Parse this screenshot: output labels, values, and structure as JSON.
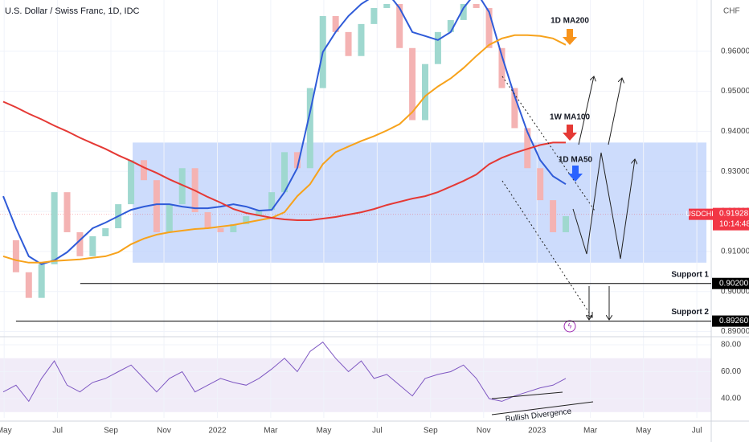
{
  "chart_data": [
    {
      "type": "candlestick",
      "title": "U.S. Dollar / Swiss Franc, 1D, IDC",
      "currency": "CHF",
      "symbol": "USDCHF",
      "x": [
        2021.33,
        2021.37,
        2021.41,
        2021.45,
        2021.49,
        2021.53,
        2021.57,
        2021.61,
        2021.65,
        2021.69,
        2021.73,
        2021.77,
        2021.81,
        2021.85,
        2021.89,
        2021.93,
        2021.97,
        2022.01,
        2022.05,
        2022.09,
        2022.13,
        2022.17,
        2022.21,
        2022.25,
        2022.29,
        2022.33,
        2022.37,
        2022.41,
        2022.45,
        2022.49,
        2022.53,
        2022.57,
        2022.61,
        2022.65,
        2022.69,
        2022.73,
        2022.77,
        2022.81,
        2022.85,
        2022.89,
        2022.93,
        2022.97,
        2023.01,
        2023.05,
        2023.09
      ],
      "values": [
        0.9128,
        0.9048,
        0.8984,
        0.9068,
        0.9248,
        0.9148,
        0.9088,
        0.9138,
        0.9158,
        0.9218,
        0.9328,
        0.9278,
        0.9148,
        0.9218,
        0.9308,
        0.9198,
        0.9158,
        0.9148,
        0.9168,
        0.9188,
        0.9204,
        0.9248,
        0.9348,
        0.9308,
        0.9508,
        0.9688,
        0.9648,
        0.9588,
        0.9668,
        0.9708,
        0.9718,
        0.9608,
        0.9428,
        0.9568,
        0.9648,
        0.9678,
        0.9718,
        0.9708,
        0.9608,
        0.9508,
        0.9408,
        0.9308,
        0.9228,
        0.9148,
        0.9188
      ],
      "up_color": "#9fd8cf",
      "down_color": "#f4b3b3",
      "series": [
        {
          "name": "1D MA50",
          "color": "#2f5bd8",
          "values": [
            0.9238,
            0.9158,
            0.9088,
            0.9068,
            0.9078,
            0.9098,
            0.9128,
            0.9158,
            0.9172,
            0.9188,
            0.9204,
            0.9212,
            0.9218,
            0.9218,
            0.9212,
            0.9208,
            0.9208,
            0.9212,
            0.9218,
            0.9212,
            0.9202,
            0.9204,
            0.9248,
            0.9308,
            0.9448,
            0.9598,
            0.9648,
            0.9688,
            0.9718,
            0.9738,
            0.9748,
            0.9708,
            0.9648,
            0.9638,
            0.9628,
            0.9648,
            0.9708,
            0.9748,
            0.9698,
            0.9588,
            0.9488,
            0.9398,
            0.9328,
            0.9288,
            0.9268
          ]
        },
        {
          "name": "1D MA200",
          "color": "#f7a21b",
          "values": [
            0.9088,
            0.9078,
            0.9072,
            0.9072,
            0.9076,
            0.9078,
            0.908,
            0.9084,
            0.9088,
            0.9098,
            0.9118,
            0.9132,
            0.9142,
            0.9148,
            0.9152,
            0.9156,
            0.9158,
            0.9162,
            0.9166,
            0.9172,
            0.9178,
            0.9184,
            0.9198,
            0.9238,
            0.9268,
            0.9318,
            0.9348,
            0.9362,
            0.9376,
            0.9388,
            0.9402,
            0.9418,
            0.9448,
            0.9488,
            0.9512,
            0.9532,
            0.9558,
            0.9588,
            0.9616,
            0.9632,
            0.964,
            0.964,
            0.9638,
            0.9632,
            0.9616
          ]
        },
        {
          "name": "1W MA100",
          "color": "#e53935",
          "values": [
            0.9474,
            0.946,
            0.9444,
            0.943,
            0.9414,
            0.94,
            0.9384,
            0.937,
            0.9356,
            0.934,
            0.9326,
            0.931,
            0.9296,
            0.928,
            0.9266,
            0.9252,
            0.9236,
            0.9222,
            0.9206,
            0.9196,
            0.919,
            0.9184,
            0.918,
            0.9178,
            0.9178,
            0.9182,
            0.9186,
            0.9192,
            0.9198,
            0.9206,
            0.9216,
            0.9224,
            0.9232,
            0.9238,
            0.9248,
            0.9262,
            0.9276,
            0.9292,
            0.9318,
            0.9334,
            0.9346,
            0.9356,
            0.9366,
            0.9372,
            0.9372
          ]
        }
      ],
      "xlim": [
        2021.32,
        2023.545
      ],
      "ylim": [
        0.8889,
        0.9728
      ],
      "yticks": [
        {
          "value": 0.89,
          "label": "0.89000"
        },
        {
          "value": 0.9,
          "label": "0.90000"
        },
        {
          "value": 0.91,
          "label": "0.91000"
        },
        {
          "value": 0.92,
          "label": "0.92000"
        },
        {
          "value": 0.93,
          "label": "0.93000"
        },
        {
          "value": 0.94,
          "label": "0.94000"
        },
        {
          "value": 0.95,
          "label": "0.95000"
        },
        {
          "value": 0.96,
          "label": "0.96000"
        }
      ],
      "grid": true,
      "zone": {
        "from": 2021.735,
        "to": 2023.53,
        "low": 0.9072,
        "high": 0.9372,
        "color": "#bcd0fb"
      },
      "hlines": [
        {
          "name": "Support 1",
          "value": 0.902,
          "value_label": "0.90200",
          "from": 2021.571
        },
        {
          "name": "Support 2",
          "value": 0.8926,
          "value_label": "0.89260",
          "from": 2021.37
        }
      ],
      "last_price": 0.91928,
      "last_price_label": "0.91928",
      "countdown": "10:14:48"
    },
    {
      "type": "line",
      "annotation": "Bullish Divergence",
      "color": "#7e57c2",
      "x": [
        2021.33,
        2021.37,
        2021.41,
        2021.45,
        2021.49,
        2021.53,
        2021.57,
        2021.61,
        2021.65,
        2021.69,
        2021.73,
        2021.77,
        2021.81,
        2021.85,
        2021.89,
        2021.93,
        2021.97,
        2022.01,
        2022.05,
        2022.09,
        2022.13,
        2022.17,
        2022.21,
        2022.25,
        2022.29,
        2022.33,
        2022.37,
        2022.41,
        2022.45,
        2022.49,
        2022.53,
        2022.57,
        2022.61,
        2022.65,
        2022.69,
        2022.73,
        2022.77,
        2022.81,
        2022.85,
        2022.89,
        2022.93,
        2022.97,
        2023.01,
        2023.05,
        2023.09
      ],
      "values": [
        45,
        50,
        38,
        55,
        68,
        50,
        45,
        52,
        55,
        60,
        65,
        55,
        45,
        55,
        60,
        45,
        50,
        55,
        52,
        50,
        55,
        62,
        70,
        60,
        75,
        82,
        70,
        60,
        68,
        55,
        58,
        50,
        42,
        55,
        58,
        60,
        65,
        55,
        40,
        38,
        42,
        45,
        48,
        50,
        55
      ],
      "xlim": [
        2021.32,
        2023.545
      ],
      "ylim": [
        25.7,
        85.4
      ],
      "yticks": [
        {
          "value": 40,
          "label": "40.00"
        },
        {
          "value": 60,
          "label": "60.00"
        },
        {
          "value": 80,
          "label": "80.00"
        }
      ],
      "band": [
        30,
        70
      ],
      "xticks": [
        {
          "value": 2021.333,
          "label": "May"
        },
        {
          "value": 2021.5,
          "label": "Jul"
        },
        {
          "value": 2021.667,
          "label": "Sep"
        },
        {
          "value": 2021.833,
          "label": "Nov"
        },
        2022,
        {
          "value": 2022.167,
          "label": "Mar"
        },
        {
          "value": 2022.333,
          "label": "May"
        },
        {
          "value": 2022.5,
          "label": "Jul"
        },
        {
          "value": 2022.667,
          "label": "Sep"
        },
        {
          "value": 2022.833,
          "label": "Nov"
        },
        {
          "value": 2023,
          "label": "2023"
        },
        {
          "value": 2023.167,
          "label": "Mar"
        },
        {
          "value": 2023.333,
          "label": "May"
        },
        {
          "value": 2023.5,
          "label": "Jul"
        }
      ]
    }
  ]
}
